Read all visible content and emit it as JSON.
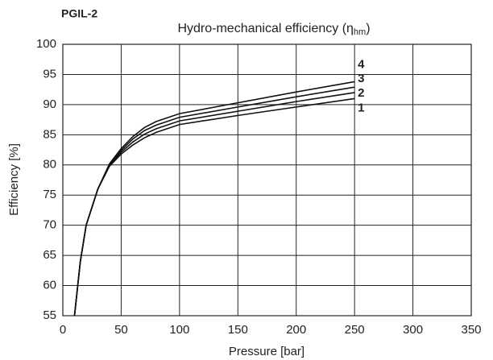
{
  "chart_data": {
    "type": "line",
    "subtitle": "PGIL-2",
    "title": {
      "main": "Hydro-mechanical efficiency (η",
      "sub": "hm",
      "end": ")"
    },
    "x_label": "Pressure [bar]",
    "y_label": "Efficiency [%]",
    "x": [
      10,
      15,
      20,
      30,
      40,
      50,
      60,
      70,
      80,
      100,
      150,
      200,
      250
    ],
    "series": [
      {
        "name": "1",
        "color": "#111111",
        "values": [
          55,
          64,
          70,
          76,
          79.8,
          81.8,
          83.3,
          84.5,
          85.4,
          86.7,
          88.2,
          89.6,
          91.0
        ]
      },
      {
        "name": "2",
        "color": "#111111",
        "values": [
          55,
          64,
          70,
          76,
          80,
          82.1,
          83.8,
          85.1,
          86.0,
          87.3,
          88.9,
          90.5,
          92.0
        ]
      },
      {
        "name": "3",
        "color": "#111111",
        "values": [
          55,
          64,
          70,
          76,
          80.1,
          82.4,
          84.3,
          85.7,
          86.6,
          87.9,
          89.6,
          91.3,
          92.9
        ]
      },
      {
        "name": "4",
        "color": "#111111",
        "values": [
          55,
          64,
          70,
          76,
          80.2,
          82.7,
          84.7,
          86.2,
          87.2,
          88.5,
          90.3,
          92.1,
          93.8
        ]
      }
    ],
    "xlim": [
      0,
      350
    ],
    "xticks": [
      0,
      50,
      100,
      150,
      200,
      250,
      300,
      350
    ],
    "ylim": [
      55,
      100
    ],
    "yticks": [
      55,
      60,
      65,
      70,
      75,
      80,
      85,
      90,
      95,
      100
    ],
    "grid": true
  }
}
